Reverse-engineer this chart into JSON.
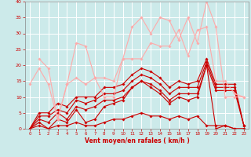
{
  "title": "",
  "xlabel": "Vent moyen/en rafales ( km/h )",
  "ylabel": "",
  "xlim": [
    -0.5,
    23.5
  ],
  "ylim": [
    0,
    40
  ],
  "yticks": [
    0,
    5,
    10,
    15,
    20,
    25,
    30,
    35,
    40
  ],
  "xticks": [
    0,
    1,
    2,
    3,
    4,
    5,
    6,
    7,
    8,
    9,
    10,
    11,
    12,
    13,
    14,
    15,
    16,
    17,
    18,
    19,
    20,
    21,
    22,
    23
  ],
  "background_color": "#cceaea",
  "grid_color": "#ffffff",
  "series": [
    {
      "x": [
        0,
        1,
        2,
        3,
        4,
        5,
        6,
        7,
        8,
        9,
        10,
        11,
        12,
        13,
        14,
        15,
        16,
        17,
        18,
        19,
        20,
        21,
        22,
        23
      ],
      "y": [
        0,
        1,
        0,
        1,
        1,
        2,
        1,
        1,
        2,
        3,
        3,
        4,
        5,
        4,
        4,
        3,
        4,
        3,
        4,
        1,
        1,
        1,
        0,
        0
      ],
      "color": "#cc0000",
      "lw": 0.8,
      "marker": "D",
      "ms": 1.8
    },
    {
      "x": [
        0,
        1,
        2,
        3,
        4,
        5,
        6,
        7,
        8,
        9,
        10,
        11,
        12,
        13,
        14,
        15,
        16,
        17,
        18,
        19,
        20,
        21,
        22,
        23
      ],
      "y": [
        0,
        2,
        0,
        3,
        2,
        6,
        2,
        3,
        7,
        8,
        9,
        13,
        15,
        13,
        11,
        8,
        10,
        9,
        10,
        20,
        0,
        1,
        0,
        0
      ],
      "color": "#cc0000",
      "lw": 0.8,
      "marker": "D",
      "ms": 1.8
    },
    {
      "x": [
        0,
        1,
        2,
        3,
        4,
        5,
        6,
        7,
        8,
        9,
        10,
        11,
        12,
        13,
        14,
        15,
        16,
        17,
        18,
        19,
        20,
        21,
        22,
        23
      ],
      "y": [
        0,
        3,
        2,
        5,
        3,
        7,
        6,
        7,
        9,
        9,
        10,
        13,
        15,
        14,
        12,
        9,
        11,
        11,
        11,
        20,
        12,
        12,
        12,
        1
      ],
      "color": "#cc0000",
      "lw": 0.8,
      "marker": "D",
      "ms": 1.8
    },
    {
      "x": [
        0,
        1,
        2,
        3,
        4,
        5,
        6,
        7,
        8,
        9,
        10,
        11,
        12,
        13,
        14,
        15,
        16,
        17,
        18,
        19,
        20,
        21,
        22,
        23
      ],
      "y": [
        0,
        4,
        4,
        6,
        5,
        9,
        8,
        9,
        11,
        11,
        12,
        15,
        17,
        16,
        14,
        11,
        13,
        13,
        13,
        21,
        13,
        13,
        13,
        1
      ],
      "color": "#cc0000",
      "lw": 0.8,
      "marker": "D",
      "ms": 1.8
    },
    {
      "x": [
        0,
        1,
        2,
        3,
        4,
        5,
        6,
        7,
        8,
        9,
        10,
        11,
        12,
        13,
        14,
        15,
        16,
        17,
        18,
        19,
        20,
        21,
        22,
        23
      ],
      "y": [
        0,
        5,
        5,
        8,
        7,
        10,
        10,
        10,
        13,
        13,
        14,
        17,
        19,
        18,
        16,
        13,
        15,
        14,
        15,
        22,
        14,
        14,
        14,
        1
      ],
      "color": "#cc0000",
      "lw": 0.8,
      "marker": "D",
      "ms": 1.8
    },
    {
      "x": [
        1,
        2,
        3,
        4,
        5,
        6,
        7,
        8,
        9,
        10,
        11,
        12,
        13,
        14,
        15,
        16,
        17,
        18,
        19,
        20,
        21,
        22,
        23
      ],
      "y": [
        22,
        19,
        3,
        14,
        27,
        26,
        16,
        10,
        10,
        22,
        32,
        35,
        30,
        35,
        34,
        28,
        35,
        27,
        40,
        32,
        10,
        10,
        10
      ],
      "color": "#ffaaaa",
      "lw": 0.8,
      "marker": "D",
      "ms": 1.8
    },
    {
      "x": [
        0,
        1,
        2,
        3,
        4,
        5,
        6,
        7,
        8,
        9,
        10,
        11,
        12,
        13,
        14,
        15,
        16,
        17,
        18,
        19,
        20,
        21,
        22,
        23
      ],
      "y": [
        14,
        19,
        14,
        3,
        14,
        16,
        14,
        16,
        16,
        15,
        22,
        22,
        22,
        27,
        26,
        26,
        31,
        23,
        31,
        32,
        15,
        15,
        11,
        10
      ],
      "color": "#ffaaaa",
      "lw": 0.8,
      "marker": "D",
      "ms": 1.8
    }
  ]
}
